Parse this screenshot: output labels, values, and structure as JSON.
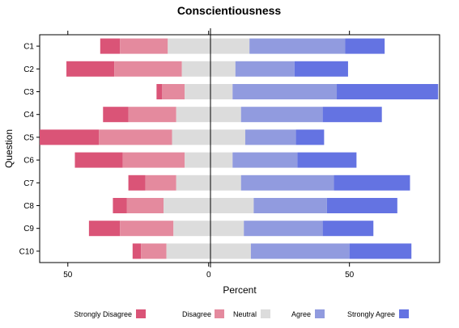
{
  "chart_data": {
    "type": "bar",
    "subtype": "diverging-stacked-horizontal",
    "title": "Conscientiousness",
    "xlabel": "Percent",
    "ylabel": "Question",
    "xlim": [
      -60,
      82
    ],
    "xticks": [
      -50,
      0,
      50
    ],
    "xtick_labels": [
      "50",
      "0",
      "50"
    ],
    "grid": false,
    "legend_position": "bottom",
    "categories": [
      "C1",
      "C2",
      "C3",
      "C4",
      "C5",
      "C6",
      "C7",
      "C8",
      "C9",
      "C10"
    ],
    "series": [
      {
        "name": "Strongly Disagree",
        "color": "#DA5477",
        "values": [
          7,
          17,
          2,
          9,
          21,
          17,
          6,
          5,
          11,
          3
        ]
      },
      {
        "name": "Disagree",
        "color": "#E48A9E",
        "values": [
          17,
          24,
          8,
          17,
          26,
          22,
          11,
          13,
          19,
          9
        ]
      },
      {
        "name": "Neutral",
        "color": "#DCDCDC",
        "values": [
          29,
          19,
          17,
          23,
          26,
          17,
          23,
          32,
          25,
          30
        ]
      },
      {
        "name": "Agree",
        "color": "#919BDF",
        "values": [
          34,
          21,
          37,
          29,
          18,
          23,
          33,
          26,
          28,
          35
        ]
      },
      {
        "name": "Strongly Agree",
        "color": "#6473E2",
        "values": [
          14,
          19,
          36,
          21,
          10,
          21,
          27,
          25,
          18,
          22
        ]
      }
    ]
  }
}
